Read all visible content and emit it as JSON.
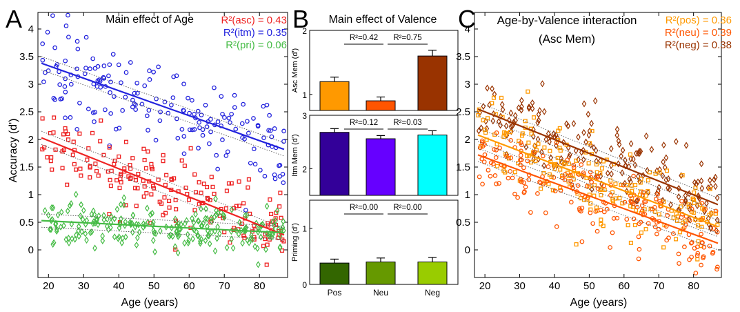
{
  "chart_data": [
    {
      "type": "scatter",
      "panel_letter": "A",
      "title": "Main effect of Age",
      "xlabel": "Age (years)",
      "ylabel": "Accuracy (d')",
      "xlim": [
        17,
        88
      ],
      "ylim": [
        -0.5,
        4.3
      ],
      "xticks": [
        20,
        30,
        40,
        50,
        60,
        70,
        80
      ],
      "yticks": [
        0,
        0.5,
        1,
        1.5,
        2,
        2.5,
        3,
        3.5,
        4
      ],
      "legend_position": "top-right",
      "legend": [
        {
          "label": "R²(asc) = 0.43",
          "color": "#ee2222"
        },
        {
          "label": "R²(itm) = 0.35",
          "color": "#2222dd"
        },
        {
          "label": "R²(pri) = 0.06",
          "color": "#44bb44"
        }
      ],
      "series": [
        {
          "key": "itm",
          "color": "#2222dd",
          "marker": "circle",
          "fit": [
            [
              18,
              3.38
            ],
            [
              87,
              1.82
            ]
          ],
          "center": [
            3.38,
            1.82
          ],
          "spread": 0.55,
          "n": 180
        },
        {
          "key": "asc",
          "color": "#ee2222",
          "marker": "square",
          "fit": [
            [
              18,
              2.03
            ],
            [
              87,
              0.27
            ]
          ],
          "center": [
            2.03,
            0.27
          ],
          "spread": 0.5,
          "n": 190
        },
        {
          "key": "pri",
          "color": "#44bb44",
          "marker": "diamond",
          "fit": [
            [
              18,
              0.53
            ],
            [
              87,
              0.31
            ]
          ],
          "center": [
            0.53,
            0.31
          ],
          "spread": 0.3,
          "n": 230
        }
      ]
    },
    {
      "type": "bar",
      "panel_letter": "B",
      "title": "Main effect of Valence",
      "categories": [
        "Pos",
        "Neu",
        "Neg"
      ],
      "subplots": [
        {
          "ylabel": "Asc Mem (d')",
          "ylim": [
            0.75,
            2
          ],
          "yticks": [
            1,
            2
          ],
          "values": [
            1.2,
            0.9,
            1.6
          ],
          "errors": [
            0.07,
            0.06,
            0.09
          ],
          "colors": [
            "#ff9900",
            "#ff5500",
            "#993300"
          ],
          "r2": [
            "R²=0.42",
            "R²=0.75"
          ]
        },
        {
          "ylabel": "Itm Mem (d')",
          "ylim": [
            1.5,
            3
          ],
          "yticks": [
            2,
            3
          ],
          "values": [
            2.68,
            2.56,
            2.63
          ],
          "errors": [
            0.07,
            0.06,
            0.08
          ],
          "colors": [
            "#330099",
            "#6600ff",
            "#00ffff"
          ],
          "r2": [
            "R²=0.12",
            "R²=0.03"
          ]
        },
        {
          "ylabel": "Priming (d')",
          "ylim": [
            0,
            1.5
          ],
          "yticks": [
            0,
            1
          ],
          "values": [
            0.38,
            0.4,
            0.4
          ],
          "errors": [
            0.07,
            0.07,
            0.08
          ],
          "colors": [
            "#336600",
            "#669900",
            "#99cc00"
          ],
          "r2": [
            "R²=0.00",
            "R²=0.00"
          ]
        }
      ]
    },
    {
      "type": "scatter",
      "panel_letter": "C",
      "title": "Age-by-Valence interaction",
      "subtitle": "(Asc Mem)",
      "xlabel": "Age (years)",
      "ylabel": "",
      "xlim": [
        17,
        88
      ],
      "ylim": [
        -0.5,
        4.3
      ],
      "xticks": [
        20,
        30,
        40,
        50,
        60,
        70,
        80
      ],
      "yticks": [
        0,
        0.5,
        1,
        1.5,
        2,
        2.5,
        3,
        3.5,
        4
      ],
      "legend_position": "top-right",
      "legend": [
        {
          "label": "R²(pos) = 0.36",
          "color": "#ff9900"
        },
        {
          "label": "R²(neu) = 0.39",
          "color": "#ff5500"
        },
        {
          "label": "R²(neg) = 0.38",
          "color": "#993300"
        }
      ],
      "series": [
        {
          "key": "neg",
          "color": "#993300",
          "marker": "diamond",
          "fit": [
            [
              18,
              2.55
            ],
            [
              87,
              0.82
            ]
          ],
          "center": [
            2.55,
            0.82
          ],
          "spread": 0.5,
          "n": 200
        },
        {
          "key": "pos",
          "color": "#ff9900",
          "marker": "square",
          "fit": [
            [
              18,
              2.08
            ],
            [
              87,
              0.42
            ]
          ],
          "center": [
            2.08,
            0.42
          ],
          "spread": 0.5,
          "n": 200
        },
        {
          "key": "neu",
          "color": "#ff5500",
          "marker": "circle",
          "fit": [
            [
              18,
              1.72
            ],
            [
              87,
              0.12
            ]
          ],
          "center": [
            1.72,
            0.12
          ],
          "spread": 0.45,
          "n": 200
        }
      ]
    }
  ]
}
